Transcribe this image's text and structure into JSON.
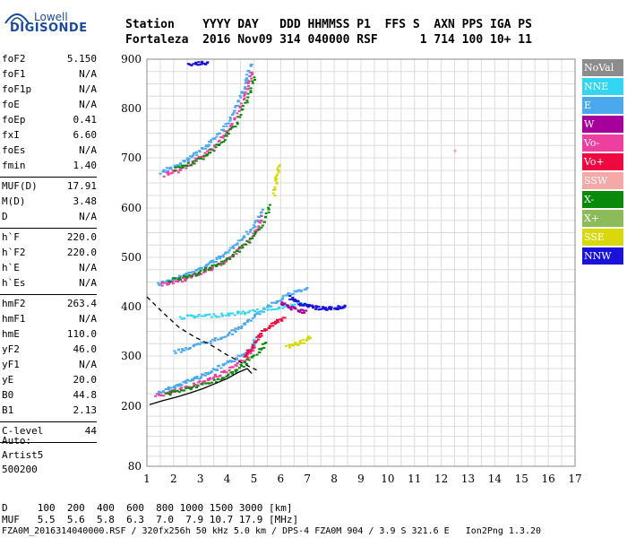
{
  "logo": {
    "top": "Lowell",
    "main": "DIGISONDE"
  },
  "header": {
    "row1": "Station    YYYY DAY   DDD HHMMSS P1  FFS S  AXN PPS IGA PS",
    "row2": "Fortaleza  2016 Nov09 314 040000 RSF      1 714 100 10+ 11"
  },
  "params_a": [
    {
      "k": "foF2",
      "v": "5.150"
    },
    {
      "k": "foF1",
      "v": "N/A"
    },
    {
      "k": "foF1p",
      "v": "N/A"
    },
    {
      "k": "foE",
      "v": "N/A"
    },
    {
      "k": "foEp",
      "v": "0.41"
    },
    {
      "k": "fxI",
      "v": "6.60"
    },
    {
      "k": "foEs",
      "v": "N/A"
    },
    {
      "k": "fmin",
      "v": "1.40"
    }
  ],
  "params_b": [
    {
      "k": "MUF(D)",
      "v": "17.91"
    },
    {
      "k": "M(D)",
      "v": "3.48"
    },
    {
      "k": "D",
      "v": "N/A"
    }
  ],
  "params_c": [
    {
      "k": "h`F",
      "v": "220.0"
    },
    {
      "k": "h`F2",
      "v": "220.0"
    },
    {
      "k": "h`E",
      "v": "N/A"
    },
    {
      "k": "h`Es",
      "v": "N/A"
    }
  ],
  "params_d": [
    {
      "k": "hmF2",
      "v": "263.4"
    },
    {
      "k": "hmF1",
      "v": "N/A"
    },
    {
      "k": "hmE",
      "v": "110.0"
    },
    {
      "k": "yF2",
      "v": "46.0"
    },
    {
      "k": "yF1",
      "v": "N/A"
    },
    {
      "k": "yE",
      "v": "20.0"
    },
    {
      "k": "B0",
      "v": "44.8"
    },
    {
      "k": "B1",
      "v": "2.13"
    }
  ],
  "params_e": [
    {
      "k": "C-level",
      "v": "44"
    }
  ],
  "auto": {
    "l1": "Auto:",
    "l2": "Artist5",
    "l3": "500200"
  },
  "legend": [
    {
      "label": "NoVal",
      "color": "#8c8c8c"
    },
    {
      "label": "NNE",
      "color": "#33d6f2"
    },
    {
      "label": "E",
      "color": "#4aa8ec"
    },
    {
      "label": "W",
      "color": "#a6009c"
    },
    {
      "label": "Vo-",
      "color": "#ee3fa0"
    },
    {
      "label": "Vo+",
      "color": "#ee0a40"
    },
    {
      "label": "SSW",
      "color": "#f5a8a8"
    },
    {
      "label": "X-",
      "color": "#0a8a0a"
    },
    {
      "label": "X+",
      "color": "#8cbc5a"
    },
    {
      "label": "SSE",
      "color": "#d8d80a"
    },
    {
      "label": "NNW",
      "color": "#1a12d8"
    }
  ],
  "footer": {
    "row1": "D     100  200  400  600  800 1000 1500 3000 [km]",
    "row2": "MUF   5.5  5.6  5.8  6.3  7.0  7.9 10.7 17.9 [MHz]",
    "row3": "FZA0M_2016314040000.RSF / 320fx256h 50 kHz 5.0 km / DPS-4 FZA0M 904 / 3.9 S 321.6 E   Ion2Png 1.3.20"
  },
  "chart_data": {
    "type": "scatter",
    "title": "",
    "xlabel": "",
    "ylabel": "",
    "xlim": [
      1,
      17
    ],
    "ylim": [
      80,
      900
    ],
    "grid": true,
    "x_ticks": [
      "1",
      "2",
      "3",
      "4",
      "5",
      "6",
      "7",
      "8",
      "9",
      "10",
      "11",
      "12",
      "13",
      "14",
      "15",
      "16",
      "17"
    ],
    "y_ticks": [
      "80",
      "200",
      "300",
      "400",
      "500",
      "600",
      "700",
      "800",
      "900"
    ],
    "y_tick_values": [
      80,
      200,
      300,
      400,
      500,
      600,
      700,
      800,
      900
    ],
    "traces": [
      {
        "series": "E",
        "color": "#4aa8ec",
        "points": [
          [
            1.4,
            228
          ],
          [
            1.8,
            236
          ],
          [
            2.2,
            245
          ],
          [
            2.6,
            254
          ],
          [
            3.0,
            262
          ],
          [
            3.4,
            272
          ],
          [
            3.8,
            282
          ],
          [
            4.2,
            293
          ],
          [
            4.6,
            306
          ],
          [
            4.9,
            322
          ],
          [
            5.05,
            340
          ]
        ]
      },
      {
        "series": "Vo-",
        "color": "#ee3fa0",
        "points": [
          [
            1.3,
            222
          ],
          [
            1.8,
            228
          ],
          [
            2.3,
            236
          ],
          [
            2.8,
            246
          ],
          [
            3.3,
            256
          ],
          [
            3.8,
            268
          ],
          [
            4.3,
            283
          ],
          [
            4.7,
            300
          ],
          [
            5.0,
            320
          ]
        ]
      },
      {
        "series": "X-",
        "color": "#0a8a0a",
        "points": [
          [
            1.7,
            226
          ],
          [
            2.3,
            234
          ],
          [
            2.9,
            242
          ],
          [
            3.5,
            252
          ],
          [
            4.1,
            266
          ],
          [
            4.6,
            285
          ],
          [
            5.1,
            308
          ],
          [
            5.4,
            330
          ]
        ]
      },
      {
        "series": "E",
        "color": "#4aa8ec",
        "points": [
          [
            2.0,
            310
          ],
          [
            2.5,
            318
          ],
          [
            3.0,
            326
          ],
          [
            3.5,
            334
          ],
          [
            4.0,
            346
          ],
          [
            4.5,
            362
          ],
          [
            5.0,
            382
          ],
          [
            5.5,
            402
          ],
          [
            6.0,
            420
          ],
          [
            6.5,
            432
          ],
          [
            7.0,
            438
          ]
        ]
      },
      {
        "series": "NNE",
        "color": "#33d6f2",
        "points": [
          [
            2.2,
            380
          ],
          [
            2.8,
            382
          ],
          [
            3.4,
            384
          ],
          [
            4.0,
            386
          ],
          [
            4.6,
            390
          ],
          [
            5.2,
            394
          ],
          [
            5.8,
            400
          ],
          [
            6.4,
            404
          ],
          [
            7.0,
            408
          ]
        ]
      },
      {
        "series": "Vo+",
        "color": "#ee0a40",
        "points": [
          [
            4.6,
            300
          ],
          [
            4.9,
            320
          ],
          [
            5.2,
            345
          ],
          [
            5.5,
            360
          ],
          [
            5.8,
            372
          ],
          [
            6.1,
            378
          ]
        ]
      },
      {
        "series": "NNW",
        "color": "#1a12d8",
        "points": [
          [
            6.3,
            420
          ],
          [
            6.6,
            410
          ],
          [
            6.9,
            404
          ],
          [
            7.2,
            400
          ],
          [
            7.5,
            398
          ],
          [
            7.8,
            398
          ],
          [
            8.1,
            400
          ],
          [
            8.4,
            402
          ]
        ]
      },
      {
        "series": "W",
        "color": "#a6009c",
        "points": [
          [
            6.0,
            410
          ],
          [
            6.3,
            400
          ],
          [
            6.6,
            395
          ],
          [
            6.9,
            390
          ]
        ]
      },
      {
        "series": "SSE",
        "color": "#d8d80a",
        "points": [
          [
            6.2,
            320
          ],
          [
            6.5,
            325
          ],
          [
            6.8,
            330
          ],
          [
            7.1,
            340
          ]
        ]
      },
      {
        "series": "E",
        "color": "#4aa8ec",
        "points": [
          [
            1.4,
            448
          ],
          [
            1.8,
            454
          ],
          [
            2.2,
            462
          ],
          [
            2.6,
            470
          ],
          [
            3.0,
            480
          ],
          [
            3.4,
            492
          ],
          [
            3.8,
            506
          ],
          [
            4.2,
            522
          ],
          [
            4.6,
            542
          ],
          [
            5.0,
            570
          ],
          [
            5.3,
            602
          ]
        ]
      },
      {
        "series": "Vo-",
        "color": "#ee3fa0",
        "points": [
          [
            1.5,
            446
          ],
          [
            2.0,
            452
          ],
          [
            2.5,
            460
          ],
          [
            3.0,
            470
          ],
          [
            3.5,
            482
          ],
          [
            4.0,
            500
          ],
          [
            4.5,
            522
          ],
          [
            5.0,
            552
          ],
          [
            5.3,
            586
          ]
        ]
      },
      {
        "series": "X-",
        "color": "#0a8a0a",
        "points": [
          [
            1.8,
            455
          ],
          [
            2.4,
            462
          ],
          [
            3.0,
            472
          ],
          [
            3.6,
            486
          ],
          [
            4.2,
            506
          ],
          [
            4.8,
            535
          ],
          [
            5.3,
            572
          ],
          [
            5.6,
            610
          ]
        ]
      },
      {
        "series": "E",
        "color": "#4aa8ec",
        "points": [
          [
            1.5,
            672
          ],
          [
            1.9,
            682
          ],
          [
            2.3,
            692
          ],
          [
            2.7,
            706
          ],
          [
            3.1,
            722
          ],
          [
            3.5,
            742
          ],
          [
            3.9,
            766
          ],
          [
            4.2,
            796
          ],
          [
            4.5,
            830
          ],
          [
            4.7,
            860
          ],
          [
            4.85,
            895
          ]
        ]
      },
      {
        "series": "Vo-",
        "color": "#ee3fa0",
        "points": [
          [
            1.6,
            668
          ],
          [
            2.1,
            676
          ],
          [
            2.6,
            690
          ],
          [
            3.1,
            708
          ],
          [
            3.6,
            732
          ],
          [
            4.0,
            760
          ],
          [
            4.4,
            796
          ],
          [
            4.7,
            840
          ],
          [
            4.9,
            880
          ]
        ]
      },
      {
        "series": "X-",
        "color": "#0a8a0a",
        "points": [
          [
            2.0,
            680
          ],
          [
            2.6,
            690
          ],
          [
            3.2,
            708
          ],
          [
            3.8,
            736
          ],
          [
            4.3,
            772
          ],
          [
            4.7,
            820
          ],
          [
            5.0,
            870
          ]
        ]
      },
      {
        "series": "SSE",
        "color": "#d8d80a",
        "points": [
          [
            5.7,
            630
          ],
          [
            5.8,
            660
          ],
          [
            5.9,
            690
          ]
        ]
      },
      {
        "series": "SSW",
        "color": "#f5a8a8",
        "points": [
          [
            12.5,
            715
          ]
        ]
      },
      {
        "series": "NNW",
        "color": "#1a12d8",
        "points": [
          [
            2.5,
            892
          ],
          [
            2.9,
            893
          ],
          [
            3.3,
            894
          ]
        ]
      }
    ],
    "profile_curves": [
      {
        "name": "solid",
        "style": "solid",
        "points": [
          [
            1.1,
            203
          ],
          [
            1.6,
            211
          ],
          [
            2.1,
            218
          ],
          [
            2.6,
            226
          ],
          [
            3.1,
            235
          ],
          [
            3.6,
            246
          ],
          [
            4.0,
            255
          ],
          [
            4.4,
            267
          ],
          [
            4.75,
            275
          ],
          [
            4.92,
            265
          ]
        ]
      },
      {
        "name": "dashed",
        "style": "dashed",
        "points": [
          [
            1.0,
            420
          ],
          [
            1.6,
            388
          ],
          [
            2.2,
            358
          ],
          [
            2.8,
            338
          ],
          [
            3.4,
            322
          ],
          [
            4.0,
            302
          ],
          [
            4.6,
            285
          ],
          [
            5.1,
            272
          ]
        ]
      }
    ]
  }
}
